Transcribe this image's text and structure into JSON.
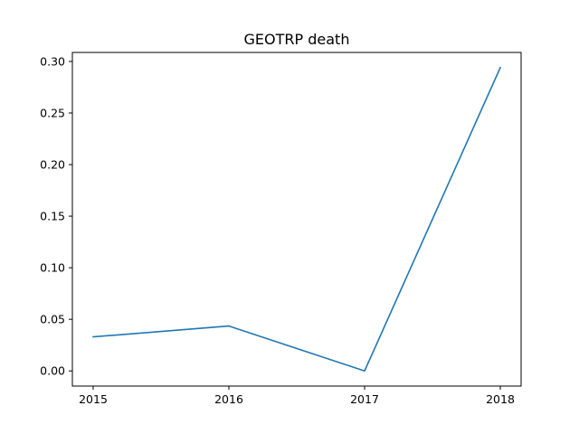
{
  "chart_data": {
    "type": "line",
    "title": "GEOTRP death",
    "xlabel": "",
    "ylabel": "",
    "x": [
      "2015",
      "2016",
      "2017",
      "2018"
    ],
    "series": [
      {
        "values": [
          0.033,
          0.0435,
          0.0,
          0.294
        ],
        "color": "#1f77b4"
      }
    ],
    "ylim": [
      -0.0147,
      0.3087
    ],
    "yticks": [
      0.0,
      0.05,
      0.1,
      0.15,
      0.2,
      0.25,
      0.3
    ],
    "ytick_labels": [
      "0.00",
      "0.05",
      "0.10",
      "0.15",
      "0.20",
      "0.25",
      "0.30"
    ],
    "grid": false,
    "legend": "none"
  }
}
